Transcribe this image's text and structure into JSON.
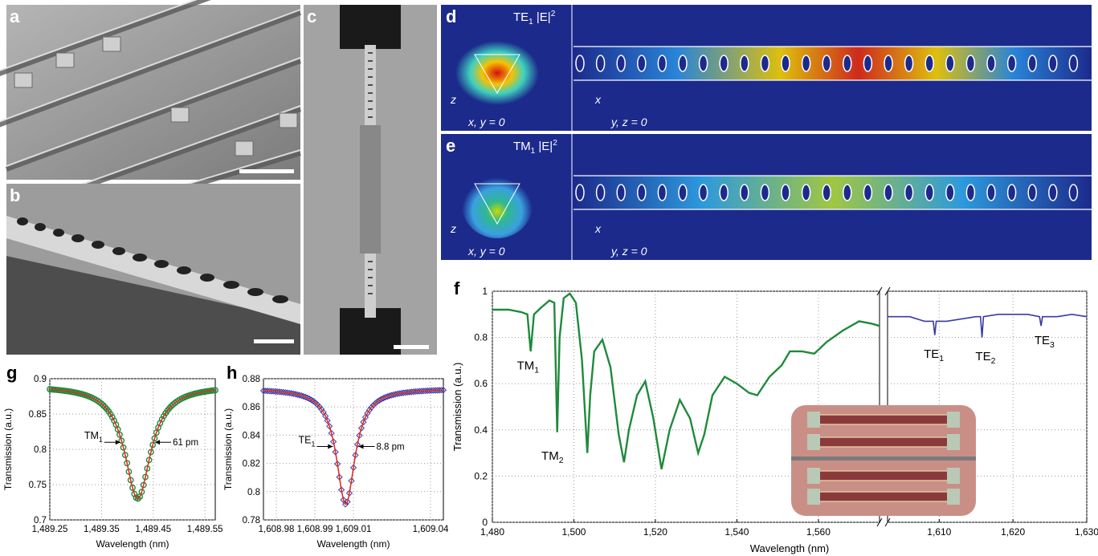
{
  "panel_labels": {
    "a": "a",
    "b": "b",
    "c": "c",
    "d": "d",
    "e": "e",
    "f": "f",
    "g": "g",
    "h": "h"
  },
  "field_panels": {
    "d": {
      "mode": "TE",
      "mode_sub": "1",
      "field": "|E|",
      "power": "2",
      "left_axes": {
        "vertical": "z",
        "horizontal": "x, y = 0"
      },
      "right_axes": {
        "vertical": "x",
        "horizontal": "y, z = 0"
      }
    },
    "e": {
      "mode": "TM",
      "mode_sub": "1",
      "field": "|E|",
      "power": "2",
      "left_axes": {
        "vertical": "z",
        "horizontal": "x, y = 0"
      },
      "right_axes": {
        "vertical": "x",
        "horizontal": "y, z = 0"
      }
    }
  },
  "colors": {
    "field_bg": "#1c2a8c",
    "green_trace": "#1f8a3c",
    "blue_trace": "#3a3aa8",
    "fit_red": "#e03020",
    "sem_gray": "#8f8f8f"
  },
  "chart_data": [
    {
      "id": "f",
      "type": "line",
      "xlabel": "Wavelength (nm)",
      "ylabel": "Transmission (a.u.)",
      "broken_axis": true,
      "segments": [
        {
          "xlim": [
            1480,
            1575
          ],
          "xticks": [
            "1,480",
            "1,500",
            "1,520",
            "1,540",
            "1,560"
          ],
          "xtick_values": [
            1480,
            1500,
            1520,
            1540,
            1560
          ],
          "series": {
            "color": "#1f8a3c",
            "x": [
              1480,
              1484,
              1487,
              1488.6,
              1489.4,
              1490.2,
              1492,
              1494,
              1495.2,
              1495.9,
              1496.5,
              1497.5,
              1499,
              1500.5,
              1502,
              1503.3,
              1504,
              1505,
              1507,
              1509,
              1511,
              1512.3,
              1513.5,
              1515.5,
              1517.5,
              1519.5,
              1521.5,
              1523.5,
              1526,
              1528.5,
              1530.5,
              1532,
              1534,
              1537,
              1540,
              1543,
              1545,
              1548,
              1551,
              1553,
              1556,
              1559,
              1562,
              1566,
              1570,
              1573,
              1575
            ],
            "y": [
              0.92,
              0.92,
              0.91,
              0.9,
              0.74,
              0.9,
              0.93,
              0.96,
              0.95,
              0.39,
              0.8,
              0.97,
              0.99,
              0.95,
              0.7,
              0.3,
              0.55,
              0.74,
              0.79,
              0.67,
              0.38,
              0.26,
              0.4,
              0.55,
              0.61,
              0.45,
              0.23,
              0.4,
              0.53,
              0.45,
              0.3,
              0.38,
              0.55,
              0.63,
              0.6,
              0.56,
              0.55,
              0.63,
              0.68,
              0.74,
              0.74,
              0.73,
              0.78,
              0.83,
              0.87,
              0.86,
              0.85
            ]
          }
        },
        {
          "xlim": [
            1603,
            1630
          ],
          "xticks": [
            "1,610",
            "1,620",
            "1,630"
          ],
          "xtick_values": [
            1610,
            1620,
            1630
          ],
          "series": {
            "color": "#3a3aa8",
            "x": [
              1603,
              1606,
              1608,
              1609.2,
              1609.4,
              1609.6,
              1611,
              1613,
              1615,
              1615.6,
              1615.8,
              1616,
              1618,
              1620,
              1622,
              1623.6,
              1623.8,
              1624,
              1626,
              1628,
              1630
            ],
            "y": [
              0.89,
              0.89,
              0.87,
              0.87,
              0.81,
              0.87,
              0.87,
              0.88,
              0.89,
              0.89,
              0.8,
              0.89,
              0.9,
              0.9,
              0.9,
              0.89,
              0.85,
              0.89,
              0.89,
              0.9,
              0.89
            ]
          }
        }
      ],
      "ylim": [
        0,
        1
      ],
      "yticks": [
        "0",
        "0.2",
        "0.4",
        "0.6",
        "0.8",
        "1"
      ],
      "ytick_values": [
        0,
        0.2,
        0.4,
        0.6,
        0.8,
        1
      ],
      "grid": true,
      "annotations": [
        {
          "label": "TM",
          "sub": "1",
          "x": 1488,
          "y": 0.71
        },
        {
          "label": "TM",
          "sub": "2",
          "x": 1494,
          "y": 0.32
        },
        {
          "label": "TE",
          "sub": "1",
          "x": 1609,
          "y": 0.76
        },
        {
          "label": "TE",
          "sub": "2",
          "x": 1616,
          "y": 0.75
        },
        {
          "label": "TE",
          "sub": "3",
          "x": 1624,
          "y": 0.82
        }
      ]
    },
    {
      "id": "g",
      "type": "line",
      "xlabel": "Wavelength (nm)",
      "ylabel": "Transmission (a.u.)",
      "xlim": [
        1489.25,
        1489.57
      ],
      "xticks": [
        "1,489.25",
        "1,489.35",
        "1,489.45",
        "1,489.55"
      ],
      "xtick_values": [
        1489.25,
        1489.35,
        1489.45,
        1489.55
      ],
      "ylim": [
        0.7,
        0.9
      ],
      "yticks": [
        "0.7",
        "0.75",
        "0.8",
        "0.85",
        "0.9"
      ],
      "ytick_values": [
        0.7,
        0.75,
        0.8,
        0.85,
        0.9
      ],
      "grid": true,
      "center": 1489.42,
      "depth": 0.16,
      "baseline": 0.89,
      "width": 0.061,
      "series": [
        {
          "color": "#1f8a3c",
          "marker": "circle"
        },
        {
          "color": "#e03020",
          "marker": "none"
        }
      ],
      "annotations": [
        {
          "label": "TM",
          "sub": "1"
        },
        {
          "label": "61 pm"
        }
      ]
    },
    {
      "id": "h",
      "type": "line",
      "xlabel": "Wavelength (nm)",
      "ylabel": "Transmission (a.u.)",
      "xlim": [
        1608.975,
        1609.045
      ],
      "xticks": [
        "1,608.98",
        "1,608.99",
        "1,609.01",
        "1,609.04"
      ],
      "xtick_values": [
        1608.98,
        1608.995,
        1609.01,
        1609.04
      ],
      "ylim": [
        0.78,
        0.88
      ],
      "yticks": [
        "0.78",
        "0.8",
        "0.82",
        "0.84",
        "0.86",
        "0.88"
      ],
      "ytick_values": [
        0.78,
        0.8,
        0.82,
        0.84,
        0.86,
        0.88
      ],
      "grid": true,
      "center": 1609.007,
      "depth": 0.082,
      "baseline": 0.873,
      "width": 0.0088,
      "series": [
        {
          "color": "#3a3aa8",
          "marker": "diamond"
        },
        {
          "color": "#e03020",
          "marker": "none"
        }
      ],
      "annotations": [
        {
          "label": "TE",
          "sub": "1"
        },
        {
          "label": "8.8 pm"
        }
      ]
    }
  ]
}
